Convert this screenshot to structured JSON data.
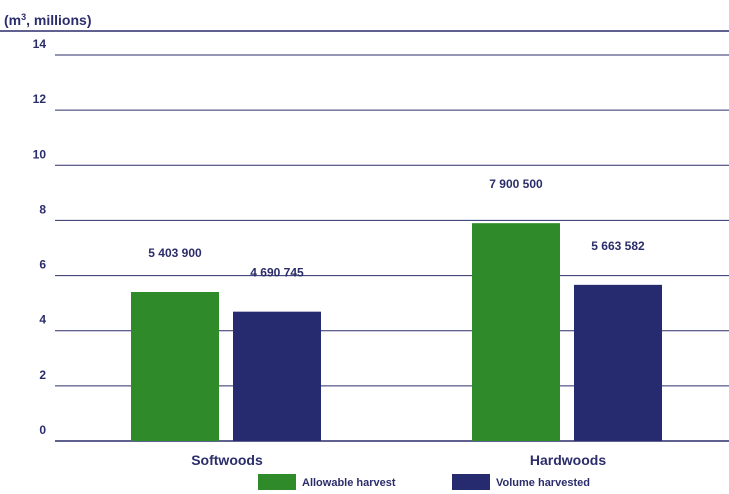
{
  "chart_data": {
    "type": "bar",
    "title": "",
    "ylabel_parts": [
      "(m",
      "3",
      ", millions)"
    ],
    "xlabel": "",
    "categories": [
      "Softwoods",
      "Hardwoods"
    ],
    "series": [
      {
        "name": "Allowable harvest",
        "values": [
          5.4039,
          7.9005
        ],
        "labels": [
          "5 403 900",
          "7 900 500"
        ],
        "color": "#2f8a2a"
      },
      {
        "name": "Volume harvested",
        "values": [
          4.690745,
          5.663582
        ],
        "labels": [
          "4 690 745",
          "5 663 582"
        ],
        "color": "#262a6e"
      }
    ],
    "ylim": [
      0,
      14
    ],
    "yticks": [
      0,
      2,
      4,
      6,
      8,
      10,
      12,
      14
    ],
    "grid": true,
    "legend": "bottom-center",
    "text_color": "#2b2d6b",
    "axis_line_color": "#2b2d6b"
  }
}
